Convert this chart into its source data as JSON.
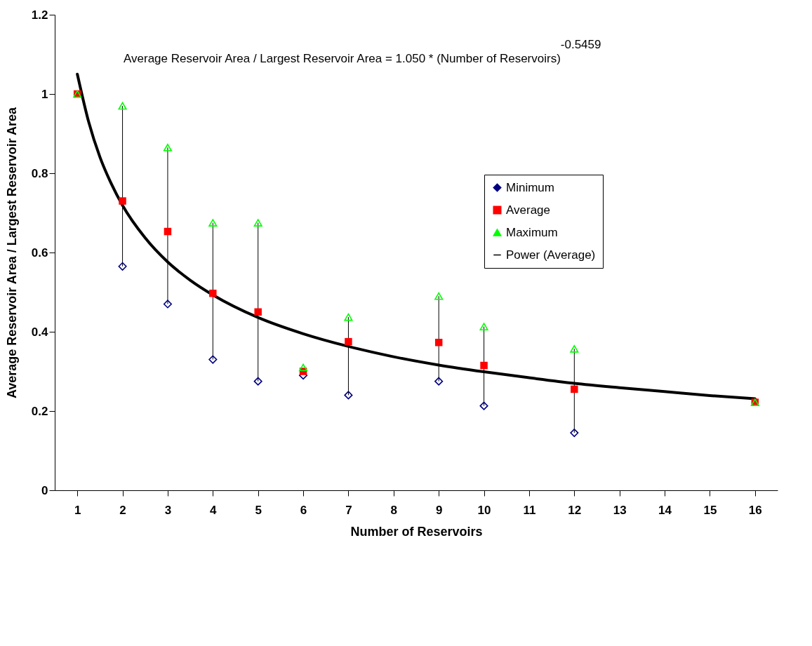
{
  "chart_data": {
    "type": "scatter",
    "xlabel": "Number of Reservoirs",
    "ylabel": "Average Reservoir Area / Largest Reservoir Area",
    "annotations": [
      "Average Reservoir Area / Largest Reservoir Area = 1.050 * (Number of Reservoirs)$^{-0.5459}$"
    ],
    "x": [
      1,
      2,
      3,
      4,
      5,
      6,
      7,
      9,
      10,
      12,
      16
    ],
    "series": [
      {
        "name": "Minimum",
        "color": "#000080",
        "marker": "diamond",
        "values": [
          null,
          0.565,
          0.47,
          0.33,
          0.275,
          0.29,
          0.24,
          0.275,
          0.213,
          0.145,
          null
        ]
      },
      {
        "name": "Average",
        "color": "#ff0000",
        "marker": "square",
        "values": [
          1.0,
          0.73,
          0.653,
          0.497,
          0.45,
          0.3,
          0.375,
          0.373,
          0.315,
          0.255,
          0.222
        ],
        "errors": [
          null,
          [
            0.565,
            0.97
          ],
          [
            0.47,
            0.865
          ],
          [
            0.33,
            0.675
          ],
          [
            0.275,
            0.675
          ],
          null,
          [
            0.24,
            0.437
          ],
          [
            0.275,
            0.49
          ],
          [
            0.213,
            0.413
          ],
          [
            0.145,
            0.357
          ],
          null
        ]
      },
      {
        "name": "Maximum",
        "color": "#00ff00",
        "marker": "triangle",
        "values": [
          1.0,
          0.97,
          0.865,
          0.675,
          0.675,
          0.31,
          0.437,
          0.49,
          0.413,
          0.357,
          0.222
        ]
      },
      {
        "name": "Power (Average)",
        "color": "#000000",
        "type": "line",
        "marker": "none",
        "x": [
          1,
          1.25,
          1.5,
          1.75,
          2,
          2.5,
          3,
          3.5,
          4,
          5,
          6,
          7,
          8,
          9,
          10,
          11,
          12,
          13,
          14,
          15,
          16
        ],
        "values": [
          1.05,
          0.93,
          0.841,
          0.774,
          0.719,
          0.637,
          0.576,
          0.53,
          0.493,
          0.436,
          0.395,
          0.363,
          0.337,
          0.316,
          0.299,
          0.284,
          0.27,
          0.259,
          0.249,
          0.239,
          0.231
        ]
      }
    ],
    "xlim": [
      0.5,
      16.5
    ],
    "xticks": [
      1,
      2,
      3,
      4,
      5,
      6,
      7,
      8,
      9,
      10,
      11,
      12,
      13,
      14,
      15,
      16
    ],
    "ylim": [
      0,
      1.2
    ],
    "yticks": [
      0,
      0.2,
      0.4,
      0.6,
      0.8,
      1,
      1.2
    ],
    "grid": false,
    "legend": "right"
  }
}
